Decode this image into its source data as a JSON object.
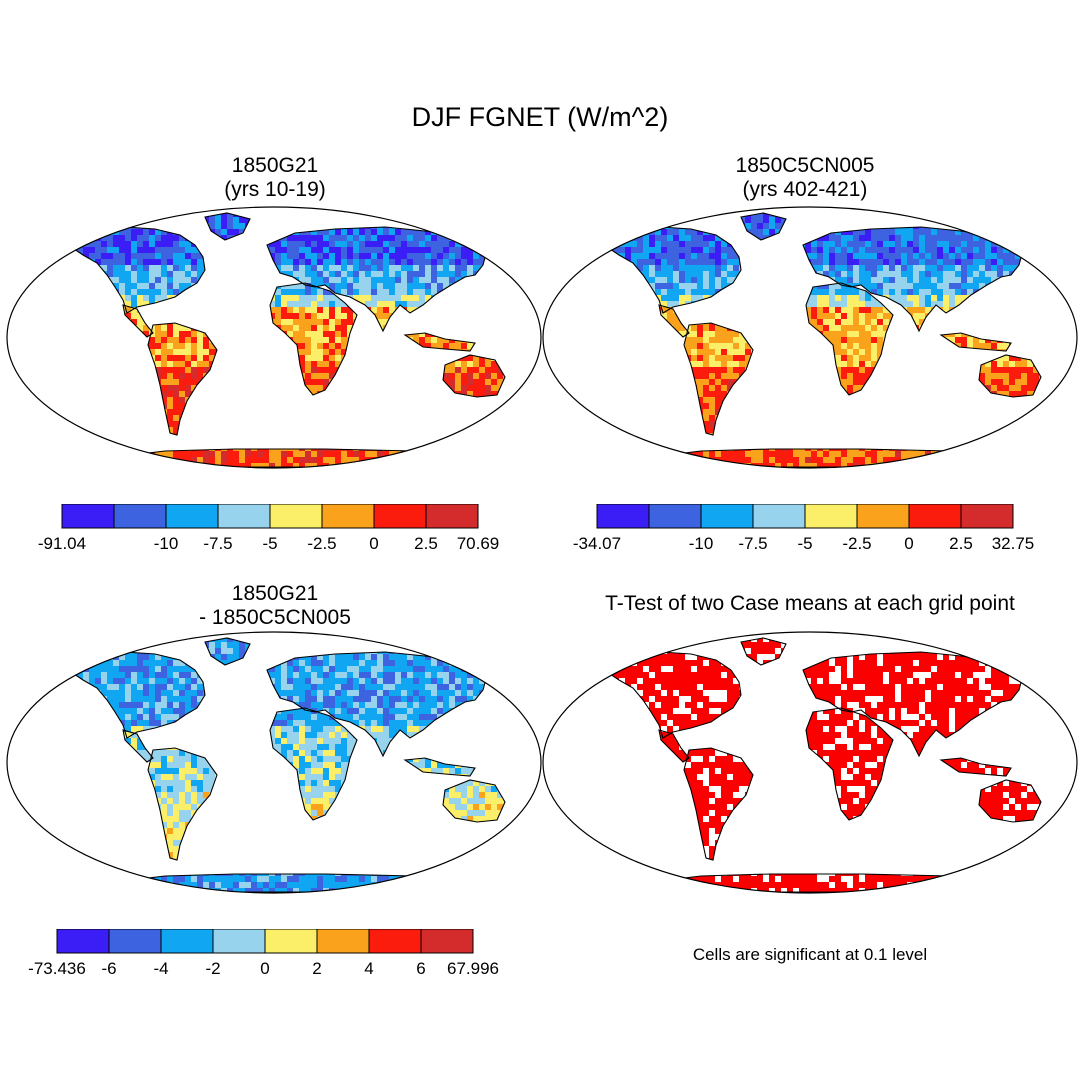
{
  "title": "DJF FGNET (W/m^2)",
  "panels": [
    {
      "title_line1": "1850G21",
      "title_line2": "(yrs 10-19)",
      "colorbar": {
        "colors": [
          "#3b1ef5",
          "#3e63e0",
          "#10a6f2",
          "#97d3ec",
          "#fbef6a",
          "#fba21c",
          "#fb1c0e",
          "#d42c2c"
        ],
        "labels": [
          "-91.04",
          "-10",
          "-7.5",
          "-5",
          "-2.5",
          "0",
          "2.5",
          "70.69"
        ]
      }
    },
    {
      "title_line1": "1850C5CN005",
      "title_line2": "(yrs 402-421)",
      "colorbar": {
        "colors": [
          "#3b1ef5",
          "#3e63e0",
          "#10a6f2",
          "#97d3ec",
          "#fbef6a",
          "#fba21c",
          "#fb1c0e",
          "#d42c2c"
        ],
        "labels": [
          "-34.07",
          "-10",
          "-7.5",
          "-5",
          "-2.5",
          "0",
          "2.5",
          "32.75"
        ]
      }
    },
    {
      "title_line1": "1850G21",
      "title_line2": "- 1850C5CN005",
      "colorbar": {
        "colors": [
          "#3b1ef5",
          "#3e63e0",
          "#10a6f2",
          "#97d3ec",
          "#fbef6a",
          "#fba21c",
          "#fb1c0e",
          "#d42c2c"
        ],
        "labels": [
          "-73.436",
          "-6",
          "-4",
          "-2",
          "0",
          "2",
          "4",
          "6",
          "67.996"
        ]
      }
    },
    {
      "title_line1": "T-Test of two Case means at each grid point",
      "title_line2": "",
      "significance_color": "#fb0000"
    }
  ],
  "note": "Cells are significant at 0.1 level"
}
